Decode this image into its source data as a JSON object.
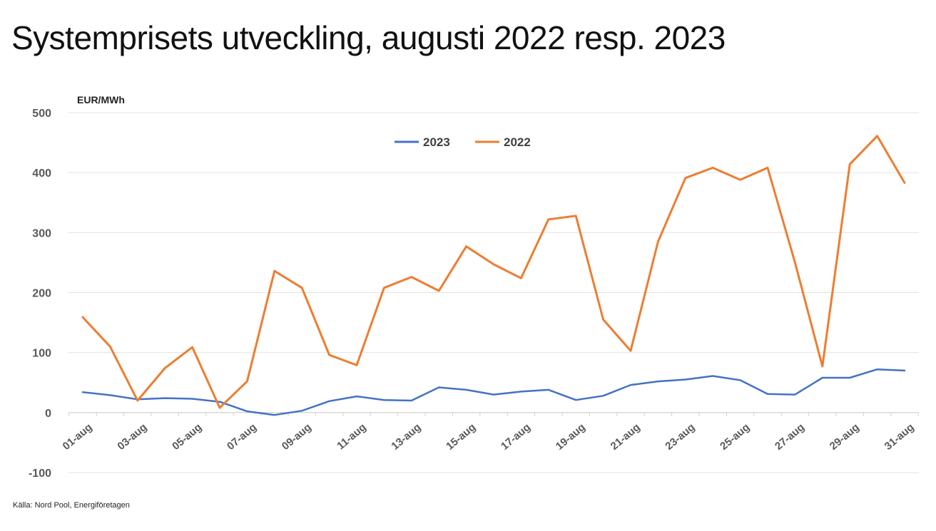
{
  "slide": {
    "title": "Systemprisets utveckling, augusti 2022 resp. 2023",
    "source": "Källa: Nord Pool, Energiföretagen"
  },
  "chart_data": {
    "type": "line",
    "title": "",
    "xlabel": "",
    "ylabel": "EUR/MWh",
    "ylim": [
      -100,
      500
    ],
    "yticks": [
      -100,
      0,
      100,
      200,
      300,
      400,
      500
    ],
    "grid": true,
    "legend_position": "top-center",
    "categories": [
      "01-aug",
      "02-aug",
      "03-aug",
      "04-aug",
      "05-aug",
      "06-aug",
      "07-aug",
      "08-aug",
      "09-aug",
      "10-aug",
      "11-aug",
      "12-aug",
      "13-aug",
      "14-aug",
      "15-aug",
      "16-aug",
      "17-aug",
      "18-aug",
      "19-aug",
      "20-aug",
      "21-aug",
      "22-aug",
      "23-aug",
      "24-aug",
      "25-aug",
      "26-aug",
      "27-aug",
      "28-aug",
      "29-aug",
      "30-aug",
      "31-aug"
    ],
    "tick_labels": [
      "01-aug",
      "03-aug",
      "05-aug",
      "07-aug",
      "09-aug",
      "11-aug",
      "13-aug",
      "15-aug",
      "17-aug",
      "19-aug",
      "21-aug",
      "23-aug",
      "25-aug",
      "27-aug",
      "29-aug",
      "31-aug"
    ],
    "series": [
      {
        "name": "2023",
        "color": "#4472C4",
        "values": [
          34,
          29,
          22,
          24,
          23,
          18,
          2,
          -4,
          3,
          19,
          27,
          21,
          20,
          42,
          38,
          30,
          35,
          38,
          21,
          28,
          46,
          52,
          55,
          61,
          54,
          31,
          30,
          58,
          58,
          72,
          70
        ]
      },
      {
        "name": "2022",
        "color": "#ED7D31",
        "values": [
          159,
          110,
          20,
          74,
          109,
          8,
          52,
          236,
          208,
          96,
          79,
          208,
          226,
          203,
          277,
          247,
          224,
          322,
          328,
          155,
          103,
          285,
          391,
          408,
          388,
          408,
          250,
          77,
          414,
          461,
          383
        ]
      }
    ]
  }
}
